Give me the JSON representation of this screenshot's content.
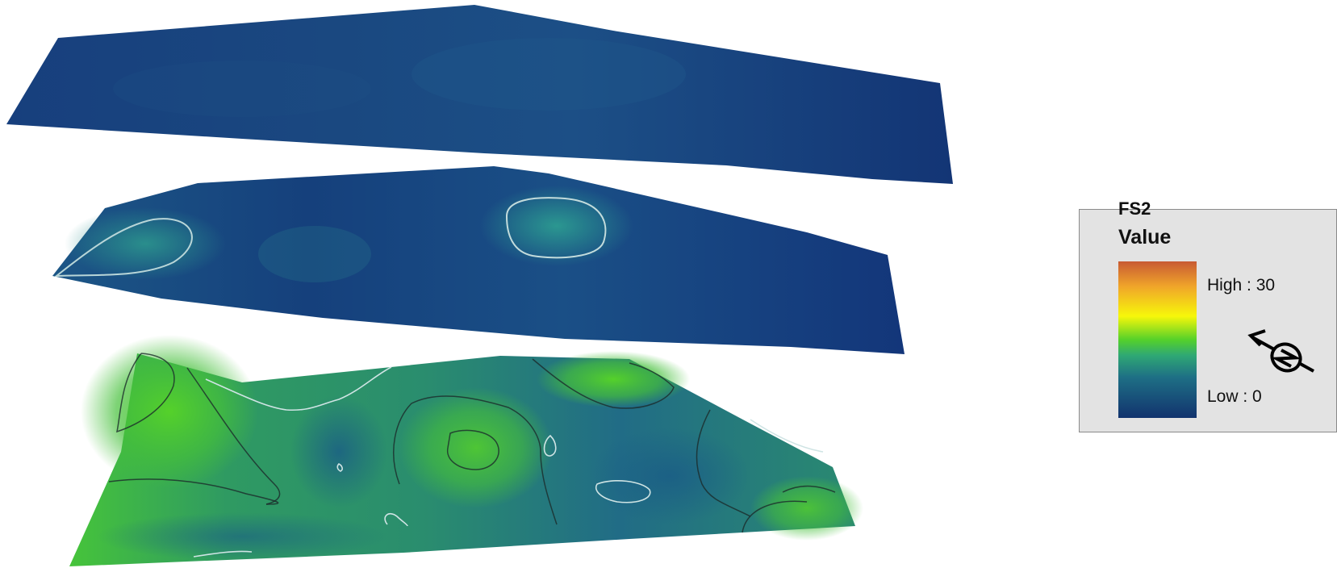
{
  "legend": {
    "layer_name": "FS2",
    "title": "Value",
    "high_label": "High : 30",
    "low_label": "Low : 0",
    "high_value": 30,
    "low_value": 0,
    "ramp_colors": [
      "#12336e",
      "#1e6f85",
      "#2fa874",
      "#55d12a",
      "#f7f70a",
      "#f0a52a",
      "#c85a33"
    ]
  },
  "surfaces": [
    {
      "name": "top-surface",
      "base_color": "#163a7a"
    },
    {
      "name": "middle-surface",
      "base_color": "#173f7d"
    },
    {
      "name": "bottom-surface",
      "base_color": "#236f8a",
      "high_color": "#4fd32b"
    }
  ],
  "icons": {
    "north_arrow": "north-arrow-icon"
  }
}
